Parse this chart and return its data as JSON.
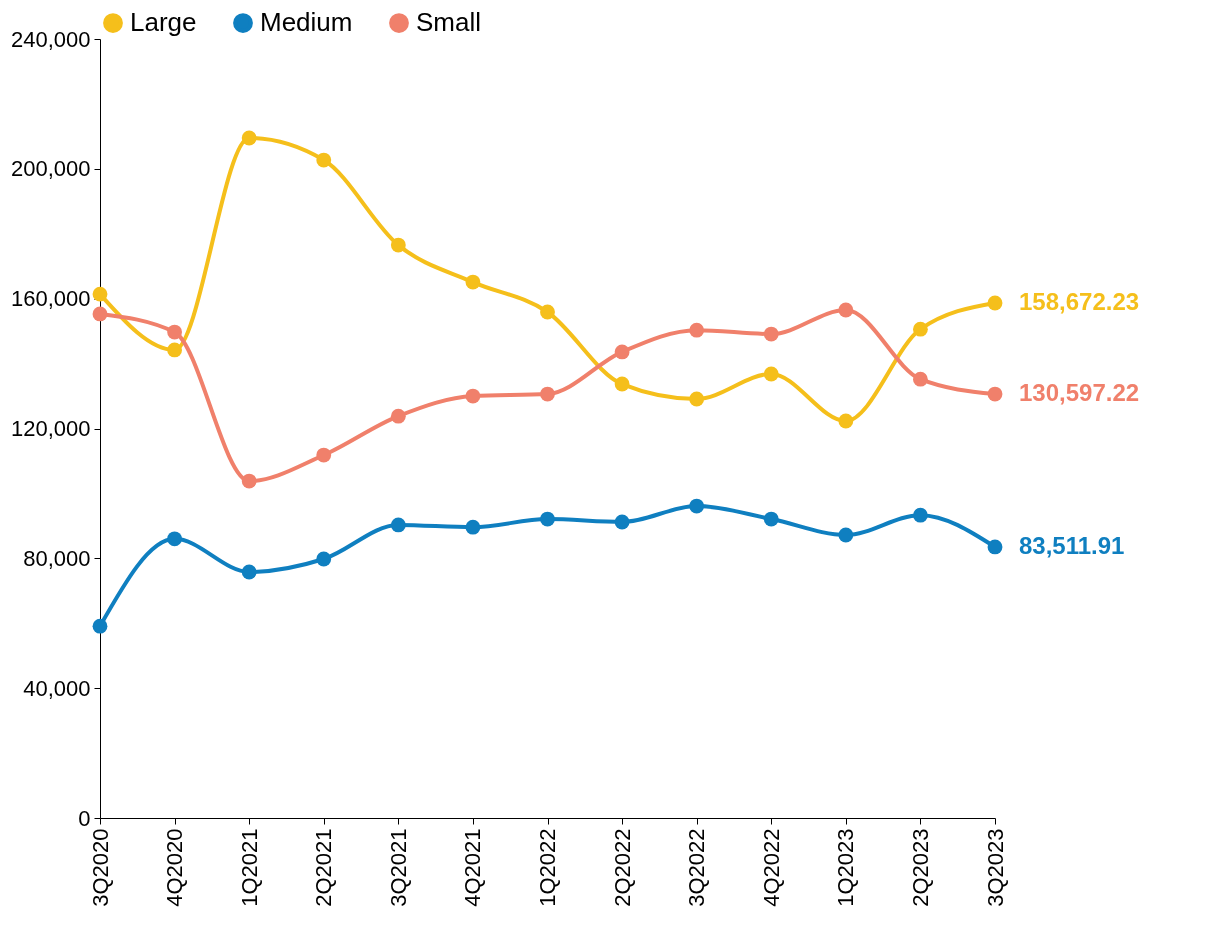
{
  "chart_data": {
    "type": "line",
    "categories": [
      "3Q2020",
      "4Q2020",
      "1Q2021",
      "2Q2021",
      "3Q2021",
      "4Q2021",
      "1Q2022",
      "2Q2022",
      "3Q2022",
      "4Q2022",
      "1Q2023",
      "2Q2023",
      "3Q2023"
    ],
    "series": [
      {
        "name": "Large",
        "color": "#f5bf1b",
        "values": [
          161400,
          144200,
          209500,
          202700,
          176500,
          165100,
          155900,
          133700,
          129100,
          136800,
          122300,
          150600,
          158672.23
        ],
        "value_labels": [
          null,
          null,
          null,
          null,
          null,
          null,
          null,
          null,
          null,
          null,
          null,
          null,
          "158,672.23"
        ]
      },
      {
        "name": "Medium",
        "color": "#0f7fc0",
        "values": [
          59100,
          86000,
          75800,
          79800,
          90300,
          89600,
          92100,
          91200,
          96100,
          92100,
          87200,
          93300,
          83511.91
        ],
        "value_labels": [
          null,
          null,
          null,
          null,
          null,
          null,
          null,
          null,
          null,
          null,
          null,
          null,
          "83,511.91"
        ]
      },
      {
        "name": "Small",
        "color": "#f0806b",
        "values": [
          155300,
          149700,
          103800,
          111800,
          123800,
          130000,
          130600,
          143600,
          150300,
          149100,
          156500,
          135200,
          130597.22
        ],
        "value_labels": [
          null,
          null,
          null,
          null,
          null,
          null,
          null,
          null,
          null,
          null,
          null,
          null,
          "130,597.22"
        ]
      }
    ],
    "ylim": [
      0,
      240000
    ],
    "yticks": [
      0,
      {
        "value": 40000,
        "label": "40,000"
      },
      {
        "value": 80000,
        "label": "80,000"
      },
      {
        "value": 120000,
        "label": "120,000"
      },
      {
        "value": 160000,
        "label": "160,000"
      },
      {
        "value": 200000,
        "label": "200,000"
      },
      {
        "value": 240000,
        "label": "240,000"
      }
    ],
    "grid": false,
    "legend": "top",
    "marker": "circle",
    "line_style": "solid"
  }
}
